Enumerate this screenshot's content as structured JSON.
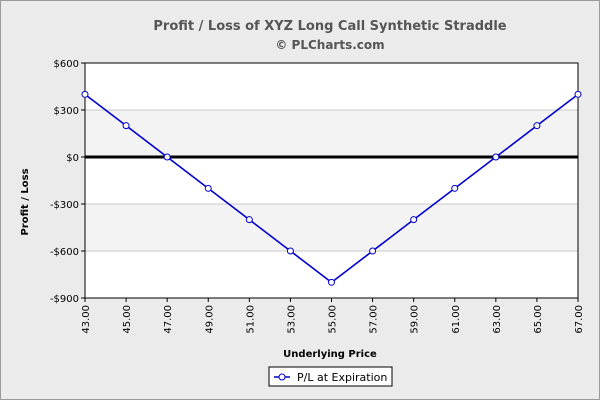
{
  "chart_data": {
    "type": "line",
    "title": "Profit / Loss of XYZ Long Call Synthetic Straddle",
    "subtitle": "© PLCharts.com",
    "xlabel": "Underlying Price",
    "ylabel": "Profit / Loss",
    "x": [
      "43.00",
      "45.00",
      "47.00",
      "49.00",
      "51.00",
      "53.00",
      "55.00",
      "57.00",
      "59.00",
      "61.00",
      "63.00",
      "65.00",
      "67.00"
    ],
    "series": [
      {
        "name": "P/L at Expiration",
        "values": [
          400,
          200,
          0,
          -200,
          -400,
          -600,
          -800,
          -600,
          -400,
          -200,
          0,
          200,
          400
        ],
        "color": "#0000cc"
      }
    ],
    "ylim": [
      -900,
      600
    ],
    "yticks": [
      600,
      300,
      0,
      -300,
      -600,
      -900
    ],
    "ytick_labels": [
      "$600",
      "$300",
      "$0",
      "-$300",
      "-$600",
      "-$900"
    ],
    "grid": true,
    "zero_line": true,
    "legend_position": "bottom-center"
  }
}
